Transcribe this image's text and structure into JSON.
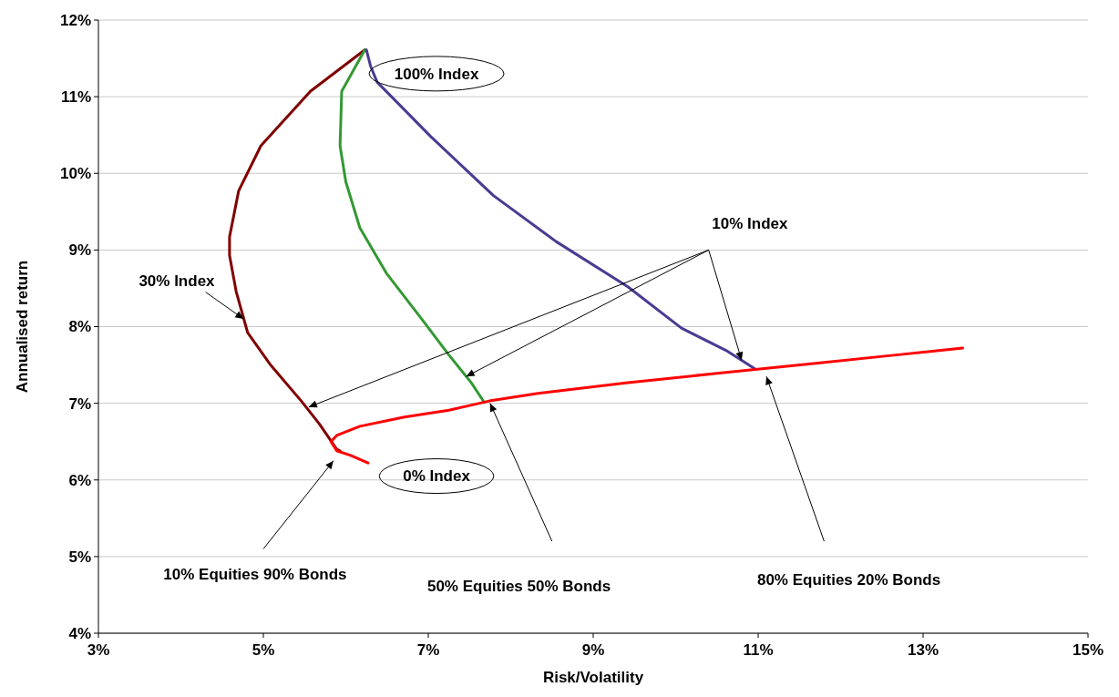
{
  "chart_data": {
    "type": "line",
    "xlabel": "Risk/Volatility",
    "ylabel": "Annualised return",
    "xlim": [
      3,
      15
    ],
    "ylim": [
      4,
      12
    ],
    "xticks": [
      {
        "value": 3,
        "label": "3%"
      },
      {
        "value": 5,
        "label": "5%"
      },
      {
        "value": 7,
        "label": "7%"
      },
      {
        "value": 9,
        "label": "9%"
      },
      {
        "value": 11,
        "label": "11%"
      },
      {
        "value": 13,
        "label": "13%"
      },
      {
        "value": 15,
        "label": "15%"
      }
    ],
    "yticks": [
      {
        "value": 4,
        "label": "4%"
      },
      {
        "value": 5,
        "label": "5%"
      },
      {
        "value": 6,
        "label": "6%"
      },
      {
        "value": 7,
        "label": "7%"
      },
      {
        "value": 8,
        "label": "8%"
      },
      {
        "value": 9,
        "label": "9%"
      },
      {
        "value": 10,
        "label": "10%"
      },
      {
        "value": 11,
        "label": "11%"
      },
      {
        "value": 12,
        "label": "12%"
      }
    ],
    "grid": "y",
    "marker": "none",
    "line_style": "solid",
    "series": [
      {
        "color": "#800000",
        "x": [
          6.23,
          5.57,
          4.97,
          4.7,
          4.59,
          4.59,
          4.67,
          4.81,
          5.08,
          5.46,
          5.68,
          5.89,
          5.93
        ],
        "values": [
          11.61,
          11.07,
          10.36,
          9.77,
          9.17,
          8.93,
          8.46,
          7.92,
          7.51,
          7.03,
          6.73,
          6.4,
          6.38
        ]
      },
      {
        "color": "#339933",
        "x": [
          6.23,
          5.95,
          5.93,
          6.0,
          6.17,
          6.49,
          6.92,
          7.25,
          7.52,
          7.68
        ],
        "values": [
          11.61,
          11.07,
          10.36,
          9.89,
          9.29,
          8.7,
          8.1,
          7.63,
          7.27,
          7.01
        ]
      },
      {
        "color": "#4b3a92",
        "x": [
          6.25,
          6.3,
          6.38,
          7.03,
          7.79,
          8.55,
          9.42,
          10.07,
          10.61,
          10.96
        ],
        "values": [
          11.61,
          11.4,
          11.19,
          10.48,
          9.71,
          9.11,
          8.52,
          7.98,
          7.69,
          7.45
        ]
      },
      {
        "color": "#ff0000",
        "x": [
          6.27,
          6.06,
          5.89,
          5.82,
          5.89,
          6.17,
          6.71,
          7.25,
          7.74,
          8.33,
          9.42,
          10.5,
          11.59,
          12.67,
          13.48
        ],
        "values": [
          6.22,
          6.32,
          6.38,
          6.5,
          6.58,
          6.7,
          6.82,
          6.91,
          7.03,
          7.13,
          7.27,
          7.39,
          7.51,
          7.63,
          7.72
        ]
      }
    ],
    "annotations": [
      "100% Index",
      "0% Index",
      {
        "text": "10% Index",
        "x": 10.8,
        "y": 7.56
      },
      {
        "text": "30% Index",
        "x": 4.76,
        "y": 8.1
      },
      "10% Equities 90% Bonds",
      "50% Equities 50% Bonds",
      "80% Equities 20% Bonds"
    ]
  }
}
